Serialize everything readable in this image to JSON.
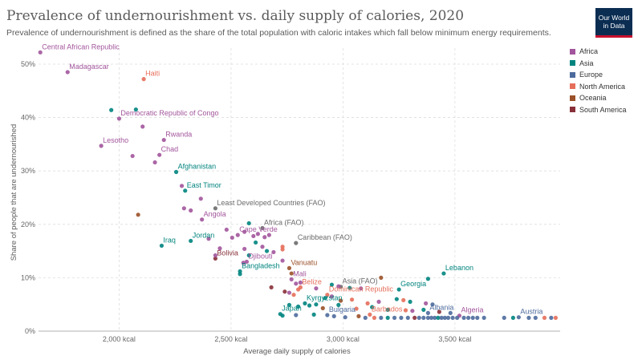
{
  "header": {
    "title": "Prevalence of undernourishment vs. daily supply of calories, 2020",
    "subtitle": "Prevalence of undernourishment is defined as the share of the total population with caloric intakes which fall below minimum energy requirements.",
    "logo_line1": "Our World",
    "logo_line2": "in Data"
  },
  "legend": [
    {
      "name": "Africa",
      "color": "#a2559c"
    },
    {
      "name": "Asia",
      "color": "#00847e"
    },
    {
      "name": "Europe",
      "color": "#4c6a9c"
    },
    {
      "name": "North America",
      "color": "#e56e5a"
    },
    {
      "name": "Oceania",
      "color": "#9a5129"
    },
    {
      "name": "South America",
      "color": "#883039"
    }
  ],
  "chart_data": {
    "type": "scatter",
    "title": "Prevalence of undernourishment vs. daily supply of calories, 2020",
    "xlabel": "Average daily supply of calories",
    "ylabel": "Share of people that are undernourished",
    "xlim": [
      1640,
      3970
    ],
    "ylim": [
      0,
      53
    ],
    "x_ticks": [
      {
        "value": 2000,
        "label": "2,000 kcal"
      },
      {
        "value": 2500,
        "label": "2,500 kcal"
      },
      {
        "value": 3000,
        "label": "3,000 kcal"
      },
      {
        "value": 3500,
        "label": "3,500 kcal"
      }
    ],
    "y_ticks": [
      {
        "value": 0,
        "label": "0%"
      },
      {
        "value": 10,
        "label": "10%"
      },
      {
        "value": 20,
        "label": "20%"
      },
      {
        "value": 30,
        "label": "30%"
      },
      {
        "value": 40,
        "label": "40%"
      },
      {
        "value": 50,
        "label": "50%"
      }
    ],
    "grid": true,
    "legend_position": "top-right",
    "points": [
      {
        "x": 1648,
        "y": 52.2,
        "group": "Africa",
        "label": "Central African Republic"
      },
      {
        "x": 1770,
        "y": 48.5,
        "group": "Africa",
        "label": "Madagascar"
      },
      {
        "x": 2110,
        "y": 47.2,
        "group": "North America",
        "label": "Haiti"
      },
      {
        "x": 2000,
        "y": 39.8,
        "group": "Africa",
        "label": "Democratic Republic of Congo"
      },
      {
        "x": 1920,
        "y": 34.7,
        "group": "Africa",
        "label": "Lesotho"
      },
      {
        "x": 2200,
        "y": 35.8,
        "group": "Africa",
        "label": "Rwanda"
      },
      {
        "x": 2180,
        "y": 33.0,
        "group": "Africa",
        "label": "Chad"
      },
      {
        "x": 2255,
        "y": 29.8,
        "group": "Asia",
        "label": "Afghanistan"
      },
      {
        "x": 2295,
        "y": 26.3,
        "group": "Asia",
        "label": "East Timor"
      },
      {
        "x": 2430,
        "y": 23.0,
        "group": "Other",
        "label": "Least Developed Countries (FAO)"
      },
      {
        "x": 2370,
        "y": 20.9,
        "group": "Africa",
        "label": "Angola"
      },
      {
        "x": 2640,
        "y": 19.3,
        "group": "Other",
        "label": "Africa (FAO)"
      },
      {
        "x": 2530,
        "y": 18.0,
        "group": "Africa",
        "label": "Cape Verde"
      },
      {
        "x": 2320,
        "y": 16.9,
        "group": "Asia",
        "label": "Jordan"
      },
      {
        "x": 2190,
        "y": 16.0,
        "group": "Asia",
        "label": "Iraq"
      },
      {
        "x": 2790,
        "y": 16.5,
        "group": "Other",
        "label": "Caribbean (FAO)"
      },
      {
        "x": 2430,
        "y": 13.6,
        "group": "South America",
        "label": "Bolivia"
      },
      {
        "x": 2570,
        "y": 13.0,
        "group": "Africa",
        "label": "Djibouti"
      },
      {
        "x": 2540,
        "y": 11.2,
        "group": "Asia",
        "label": "Bangladesh"
      },
      {
        "x": 2760,
        "y": 11.8,
        "group": "Oceania",
        "label": "Vanuatu"
      },
      {
        "x": 2770,
        "y": 9.7,
        "group": "Africa",
        "label": "Mali"
      },
      {
        "x": 2990,
        "y": 8.3,
        "group": "Other",
        "label": "Asia (FAO)"
      },
      {
        "x": 2810,
        "y": 8.2,
        "group": "North America",
        "label": "Belize"
      },
      {
        "x": 3250,
        "y": 7.8,
        "group": "Asia",
        "label": "Georgia"
      },
      {
        "x": 2930,
        "y": 6.8,
        "group": "North America",
        "label": "Dominican Republic"
      },
      {
        "x": 3450,
        "y": 10.8,
        "group": "Asia",
        "label": "Lebanon"
      },
      {
        "x": 2830,
        "y": 5.2,
        "group": "Asia",
        "label": "Kyrgyzstan"
      },
      {
        "x": 3380,
        "y": 3.4,
        "group": "Europe",
        "label": "Albania"
      },
      {
        "x": 3120,
        "y": 3.1,
        "group": "North America",
        "label": "Barbados"
      },
      {
        "x": 2930,
        "y": 3.0,
        "group": "Europe",
        "label": "Bulgaria"
      },
      {
        "x": 2720,
        "y": 3.2,
        "group": "Asia",
        "label": "Japan"
      },
      {
        "x": 3520,
        "y": 2.9,
        "group": "Africa",
        "label": "Algeria"
      },
      {
        "x": 3785,
        "y": 2.6,
        "group": "Europe",
        "label": "Austria"
      },
      {
        "x": 1965,
        "y": 41.4,
        "group": "Asia"
      },
      {
        "x": 2075,
        "y": 41.5,
        "group": "Asia"
      },
      {
        "x": 2105,
        "y": 38.3,
        "group": "Africa"
      },
      {
        "x": 2060,
        "y": 32.8,
        "group": "Africa"
      },
      {
        "x": 2160,
        "y": 31.6,
        "group": "Africa"
      },
      {
        "x": 2280,
        "y": 27.2,
        "group": "Africa"
      },
      {
        "x": 2290,
        "y": 23.0,
        "group": "Africa"
      },
      {
        "x": 2320,
        "y": 22.6,
        "group": "Africa"
      },
      {
        "x": 2085,
        "y": 21.8,
        "group": "Oceania"
      },
      {
        "x": 2365,
        "y": 24.8,
        "group": "Africa"
      },
      {
        "x": 2480,
        "y": 19.0,
        "group": "Africa"
      },
      {
        "x": 2505,
        "y": 17.5,
        "group": "Africa"
      },
      {
        "x": 2560,
        "y": 18.6,
        "group": "Africa"
      },
      {
        "x": 2580,
        "y": 20.2,
        "group": "Asia"
      },
      {
        "x": 2600,
        "y": 17.8,
        "group": "Africa"
      },
      {
        "x": 2620,
        "y": 18.2,
        "group": "Africa"
      },
      {
        "x": 2650,
        "y": 17.6,
        "group": "Africa"
      },
      {
        "x": 2670,
        "y": 18.0,
        "group": "Africa"
      },
      {
        "x": 2610,
        "y": 16.6,
        "group": "Asia"
      },
      {
        "x": 2560,
        "y": 15.4,
        "group": "Africa"
      },
      {
        "x": 2580,
        "y": 14.2,
        "group": "Asia"
      },
      {
        "x": 2450,
        "y": 15.5,
        "group": "Africa"
      },
      {
        "x": 2400,
        "y": 17.3,
        "group": "Africa"
      },
      {
        "x": 2640,
        "y": 15.8,
        "group": "Africa"
      },
      {
        "x": 2660,
        "y": 15.0,
        "group": "Asia"
      },
      {
        "x": 2690,
        "y": 14.8,
        "group": "Africa"
      },
      {
        "x": 2730,
        "y": 15.8,
        "group": "North America"
      },
      {
        "x": 2730,
        "y": 15.3,
        "group": "North America"
      },
      {
        "x": 2430,
        "y": 14.2,
        "group": "Africa"
      },
      {
        "x": 2555,
        "y": 12.8,
        "group": "Africa"
      },
      {
        "x": 2540,
        "y": 10.7,
        "group": "Asia"
      },
      {
        "x": 2730,
        "y": 13.2,
        "group": "Africa"
      },
      {
        "x": 2770,
        "y": 10.8,
        "group": "Oceania"
      },
      {
        "x": 2680,
        "y": 8.2,
        "group": "South America"
      },
      {
        "x": 2740,
        "y": 7.4,
        "group": "South America"
      },
      {
        "x": 2790,
        "y": 8.9,
        "group": "Africa"
      },
      {
        "x": 2800,
        "y": 7.8,
        "group": "North America"
      },
      {
        "x": 2810,
        "y": 9.1,
        "group": "Africa"
      },
      {
        "x": 2760,
        "y": 7.2,
        "group": "Africa"
      },
      {
        "x": 2780,
        "y": 6.8,
        "group": "North America"
      },
      {
        "x": 2880,
        "y": 8.0,
        "group": "Africa"
      },
      {
        "x": 2950,
        "y": 8.7,
        "group": "Asia"
      },
      {
        "x": 2980,
        "y": 8.4,
        "group": "Africa"
      },
      {
        "x": 3030,
        "y": 8.1,
        "group": "Asia"
      },
      {
        "x": 3080,
        "y": 8.0,
        "group": "Africa"
      },
      {
        "x": 3170,
        "y": 10.0,
        "group": "Oceania"
      },
      {
        "x": 3380,
        "y": 9.8,
        "group": "Asia"
      },
      {
        "x": 2920,
        "y": 6.2,
        "group": "Asia"
      },
      {
        "x": 2950,
        "y": 6.5,
        "group": "Africa"
      },
      {
        "x": 2990,
        "y": 5.7,
        "group": "Oceania"
      },
      {
        "x": 3040,
        "y": 5.9,
        "group": "North America"
      },
      {
        "x": 3110,
        "y": 5.2,
        "group": "North America"
      },
      {
        "x": 3160,
        "y": 5.5,
        "group": "Africa"
      },
      {
        "x": 3240,
        "y": 6.0,
        "group": "Asia"
      },
      {
        "x": 3270,
        "y": 5.8,
        "group": "North America"
      },
      {
        "x": 3300,
        "y": 5.5,
        "group": "Asia"
      },
      {
        "x": 3370,
        "y": 5.2,
        "group": "Africa"
      },
      {
        "x": 3400,
        "y": 5.0,
        "group": "Europe"
      },
      {
        "x": 2760,
        "y": 4.9,
        "group": "Asia"
      },
      {
        "x": 2800,
        "y": 4.6,
        "group": "Asia"
      },
      {
        "x": 2850,
        "y": 4.8,
        "group": "Asia"
      },
      {
        "x": 2880,
        "y": 5.0,
        "group": "Asia"
      },
      {
        "x": 2910,
        "y": 4.3,
        "group": "Oceania"
      },
      {
        "x": 2980,
        "y": 4.9,
        "group": "Asia"
      },
      {
        "x": 3060,
        "y": 4.2,
        "group": "North America"
      },
      {
        "x": 3130,
        "y": 4.5,
        "group": "Asia"
      },
      {
        "x": 3200,
        "y": 4.0,
        "group": "Asia"
      },
      {
        "x": 3280,
        "y": 3.9,
        "group": "North America"
      },
      {
        "x": 3310,
        "y": 3.8,
        "group": "Africa"
      },
      {
        "x": 3360,
        "y": 4.0,
        "group": "Asia"
      },
      {
        "x": 3430,
        "y": 3.6,
        "group": "South America"
      },
      {
        "x": 3480,
        "y": 3.4,
        "group": "Europe"
      },
      {
        "x": 2730,
        "y": 2.9,
        "group": "Asia"
      },
      {
        "x": 2790,
        "y": 3.0,
        "group": "Europe"
      },
      {
        "x": 2870,
        "y": 3.1,
        "group": "Asia"
      },
      {
        "x": 2960,
        "y": 2.8,
        "group": "Europe"
      },
      {
        "x": 3010,
        "y": 2.6,
        "group": "Europe"
      },
      {
        "x": 3070,
        "y": 2.8,
        "group": "Oceania"
      },
      {
        "x": 3100,
        "y": 2.5,
        "group": "Europe"
      },
      {
        "x": 3140,
        "y": 2.5,
        "group": "North America"
      },
      {
        "x": 3170,
        "y": 2.5,
        "group": "Europe"
      },
      {
        "x": 3200,
        "y": 2.5,
        "group": "Asia"
      },
      {
        "x": 3230,
        "y": 2.5,
        "group": "Europe"
      },
      {
        "x": 3260,
        "y": 2.5,
        "group": "Europe"
      },
      {
        "x": 3290,
        "y": 2.5,
        "group": "Europe"
      },
      {
        "x": 3320,
        "y": 2.5,
        "group": "South America"
      },
      {
        "x": 3340,
        "y": 2.5,
        "group": "Europe"
      },
      {
        "x": 3360,
        "y": 2.5,
        "group": "Europe"
      },
      {
        "x": 3380,
        "y": 2.5,
        "group": "Europe"
      },
      {
        "x": 3395,
        "y": 2.5,
        "group": "Europe"
      },
      {
        "x": 3410,
        "y": 2.5,
        "group": "Europe"
      },
      {
        "x": 3425,
        "y": 2.5,
        "group": "Asia"
      },
      {
        "x": 3440,
        "y": 2.5,
        "group": "Europe"
      },
      {
        "x": 3455,
        "y": 2.5,
        "group": "Europe"
      },
      {
        "x": 3470,
        "y": 2.5,
        "group": "Europe"
      },
      {
        "x": 3490,
        "y": 2.5,
        "group": "Europe"
      },
      {
        "x": 3510,
        "y": 2.5,
        "group": "Europe"
      },
      {
        "x": 3540,
        "y": 2.5,
        "group": "Europe"
      },
      {
        "x": 3560,
        "y": 2.5,
        "group": "Europe"
      },
      {
        "x": 3580,
        "y": 2.5,
        "group": "Europe"
      },
      {
        "x": 3600,
        "y": 2.5,
        "group": "Europe"
      },
      {
        "x": 3630,
        "y": 2.5,
        "group": "Europe"
      },
      {
        "x": 3720,
        "y": 2.5,
        "group": "Europe"
      },
      {
        "x": 3760,
        "y": 2.5,
        "group": "Asia"
      },
      {
        "x": 3830,
        "y": 2.5,
        "group": "Europe"
      },
      {
        "x": 3860,
        "y": 2.5,
        "group": "Europe"
      },
      {
        "x": 3900,
        "y": 2.5,
        "group": "North America"
      },
      {
        "x": 3930,
        "y": 2.5,
        "group": "Europe"
      },
      {
        "x": 3950,
        "y": 2.5,
        "group": "North America"
      }
    ]
  }
}
